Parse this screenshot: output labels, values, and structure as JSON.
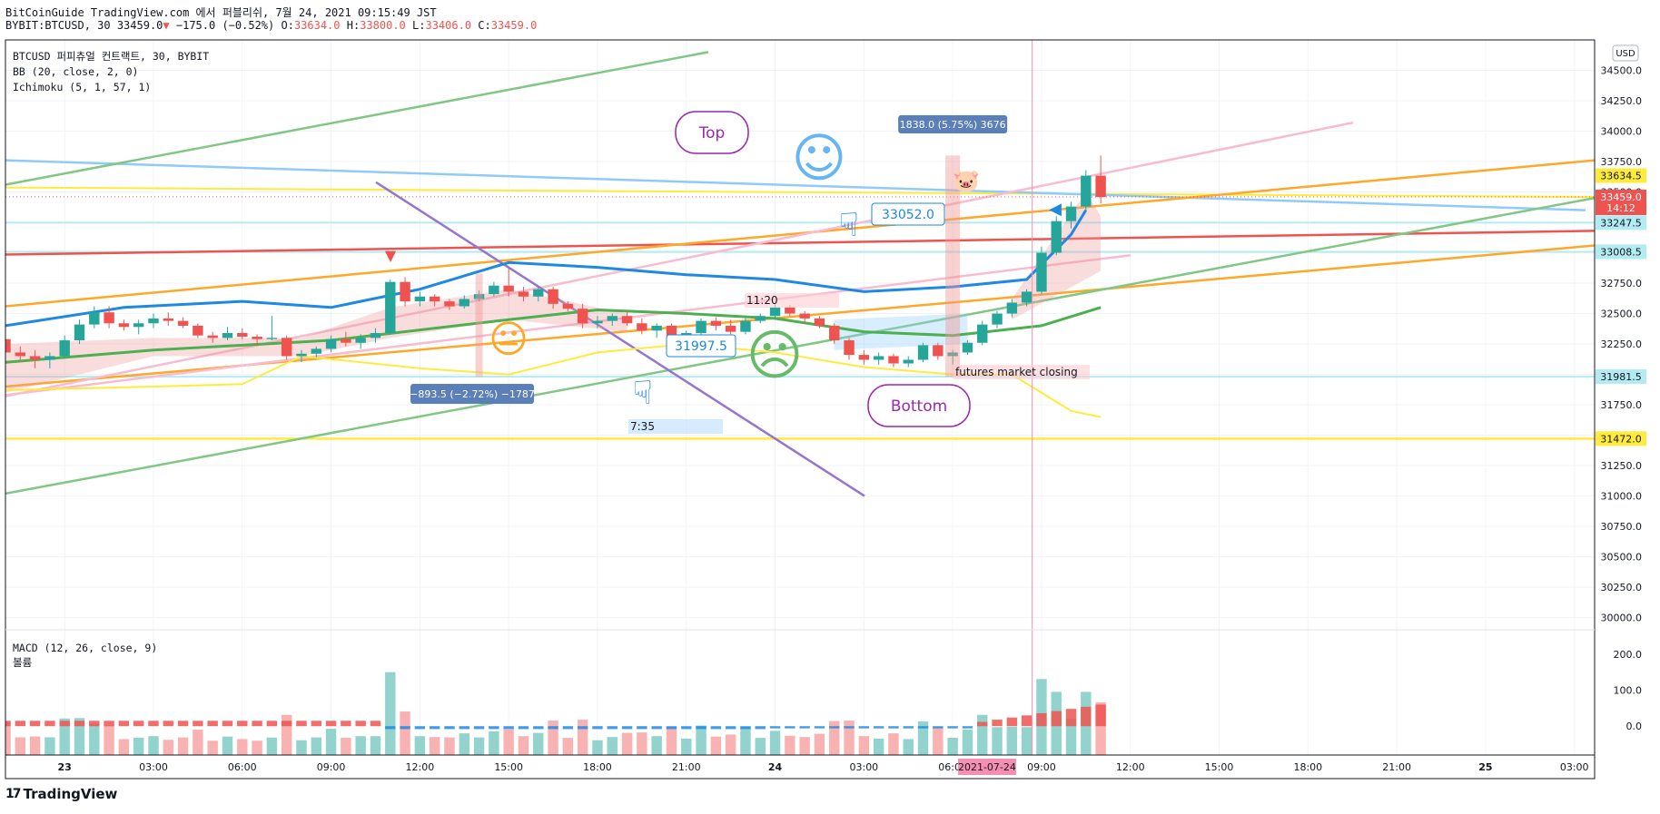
{
  "header": {
    "line1": "BitCoinGuide TradingView.com 에서 퍼블리쉬, 7월 24, 2021 09:15:49 JST",
    "symbol": "BYBIT:BTCUSD, 30",
    "price": "33459.0",
    "change": "−175.0 (−0.52%)",
    "ohlc": {
      "o_label": "O:",
      "o": "33634.0",
      "h_label": "H:",
      "h": "33800.0",
      "l_label": "L:",
      "l": "33406.0",
      "c_label": "C:",
      "c": "33459.0"
    }
  },
  "legend": {
    "title": "BTCUSD 퍼피츄얼 컨트랙트, 30, BYBIT",
    "bb": "BB (20, close, 2, 0)",
    "ichimoku": "Ichimoku (5, 1, 57, 1)",
    "macd": "MACD (12, 26, close, 9)",
    "volume": "볼륨"
  },
  "brand": "TradingView",
  "colors": {
    "up": "#26a69a",
    "down": "#ef5350",
    "bb": "#1e88e5",
    "kijun": "#4caf50",
    "yellow": "#ffeb3b",
    "cyan": "#b2ebf2",
    "pink": "#f8bbd0",
    "orange": "#ffa726",
    "blueTrend": "#90caf9",
    "purple": "#9575cd"
  },
  "chart_data": {
    "type": "candlestick",
    "currency": "USD",
    "ylim": [
      29900,
      34750
    ],
    "yticks": [
      30000,
      30250,
      30500,
      30750,
      31000,
      31250,
      31500,
      31750,
      32000,
      32250,
      32500,
      32750,
      33000,
      33250,
      33500,
      33750,
      34000,
      34250,
      34500
    ],
    "x_labels": [
      "23",
      "03:00",
      "06:00",
      "09:00",
      "12:00",
      "15:00",
      "18:00",
      "21:00",
      "24",
      "03:00",
      "06:00",
      "09:00",
      "12:00",
      "15:00",
      "18:00",
      "21:00",
      "25",
      "03:00"
    ],
    "x_label_highlight": "2021-07-24",
    "time_range": [
      "2021-07-22 22:00",
      "2021-07-25 03:30"
    ],
    "interval_minutes": 30,
    "price_labels": [
      {
        "value": "33634.5",
        "price": 33634.5,
        "color": "#ffeb3b",
        "text_color": "#131722"
      },
      {
        "value": "33459.0",
        "price": 33459.0,
        "color": "#ef5350",
        "text_color": "#ffffff",
        "sub": "14:12"
      },
      {
        "value": "33247.5",
        "price": 33247.5,
        "color": "#b2ebf2",
        "text_color": "#131722"
      },
      {
        "value": "33008.5",
        "price": 33008.5,
        "color": "#b2ebf2",
        "text_color": "#131722"
      },
      {
        "value": "31981.5",
        "price": 31981.5,
        "color": "#b2ebf2",
        "text_color": "#131722"
      },
      {
        "value": "31472.0",
        "price": 31472.0,
        "color": "#ffeb3b",
        "text_color": "#131722"
      }
    ],
    "candles": [
      {
        "t": "2021-07-22 22:00",
        "o": 32290,
        "h": 32340,
        "l": 32150,
        "c": 32180
      },
      {
        "t": "2021-07-22 22:30",
        "o": 32180,
        "h": 32230,
        "l": 32100,
        "c": 32150
      },
      {
        "t": "2021-07-22 23:00",
        "o": 32150,
        "h": 32200,
        "l": 32050,
        "c": 32120
      },
      {
        "t": "2021-07-22 23:30",
        "o": 32120,
        "h": 32180,
        "l": 32050,
        "c": 32150
      },
      {
        "t": "2021-07-23 00:00",
        "o": 32150,
        "h": 32320,
        "l": 32130,
        "c": 32280
      },
      {
        "t": "2021-07-23 00:30",
        "o": 32280,
        "h": 32450,
        "l": 32250,
        "c": 32410
      },
      {
        "t": "2021-07-23 01:00",
        "o": 32410,
        "h": 32560,
        "l": 32380,
        "c": 32510
      },
      {
        "t": "2021-07-23 01:30",
        "o": 32510,
        "h": 32560,
        "l": 32380,
        "c": 32420
      },
      {
        "t": "2021-07-23 02:00",
        "o": 32420,
        "h": 32450,
        "l": 32360,
        "c": 32390
      },
      {
        "t": "2021-07-23 02:30",
        "o": 32390,
        "h": 32450,
        "l": 32330,
        "c": 32420
      },
      {
        "t": "2021-07-23 03:00",
        "o": 32420,
        "h": 32500,
        "l": 32380,
        "c": 32460
      },
      {
        "t": "2021-07-23 03:30",
        "o": 32460,
        "h": 32510,
        "l": 32400,
        "c": 32440
      },
      {
        "t": "2021-07-23 04:00",
        "o": 32440,
        "h": 32470,
        "l": 32380,
        "c": 32400
      },
      {
        "t": "2021-07-23 04:30",
        "o": 32400,
        "h": 32420,
        "l": 32300,
        "c": 32320
      },
      {
        "t": "2021-07-23 05:00",
        "o": 32320,
        "h": 32350,
        "l": 32260,
        "c": 32300
      },
      {
        "t": "2021-07-23 05:30",
        "o": 32300,
        "h": 32390,
        "l": 32280,
        "c": 32340
      },
      {
        "t": "2021-07-23 06:00",
        "o": 32340,
        "h": 32380,
        "l": 32290,
        "c": 32310
      },
      {
        "t": "2021-07-23 06:30",
        "o": 32310,
        "h": 32330,
        "l": 32240,
        "c": 32290
      },
      {
        "t": "2021-07-23 07:00",
        "o": 32290,
        "h": 32480,
        "l": 32280,
        "c": 32300
      },
      {
        "t": "2021-07-23 07:30",
        "o": 32300,
        "h": 32320,
        "l": 32120,
        "c": 32150
      },
      {
        "t": "2021-07-23 08:00",
        "o": 32150,
        "h": 32200,
        "l": 32100,
        "c": 32170
      },
      {
        "t": "2021-07-23 08:30",
        "o": 32170,
        "h": 32230,
        "l": 32140,
        "c": 32210
      },
      {
        "t": "2021-07-23 09:00",
        "o": 32210,
        "h": 32320,
        "l": 32180,
        "c": 32290
      },
      {
        "t": "2021-07-23 09:30",
        "o": 32290,
        "h": 32350,
        "l": 32230,
        "c": 32260
      },
      {
        "t": "2021-07-23 10:00",
        "o": 32260,
        "h": 32330,
        "l": 32210,
        "c": 32300
      },
      {
        "t": "2021-07-23 10:30",
        "o": 32300,
        "h": 32380,
        "l": 32260,
        "c": 32340
      },
      {
        "t": "2021-07-23 11:00",
        "o": 32340,
        "h": 32780,
        "l": 32330,
        "c": 32760
      },
      {
        "t": "2021-07-23 11:30",
        "o": 32760,
        "h": 32800,
        "l": 32560,
        "c": 32600
      },
      {
        "t": "2021-07-23 12:00",
        "o": 32600,
        "h": 32680,
        "l": 32560,
        "c": 32640
      },
      {
        "t": "2021-07-23 12:30",
        "o": 32640,
        "h": 32660,
        "l": 32560,
        "c": 32600
      },
      {
        "t": "2021-07-23 13:00",
        "o": 32600,
        "h": 32620,
        "l": 32530,
        "c": 32560
      },
      {
        "t": "2021-07-23 13:30",
        "o": 32560,
        "h": 32650,
        "l": 32540,
        "c": 32620
      },
      {
        "t": "2021-07-23 14:00",
        "o": 32620,
        "h": 32690,
        "l": 32600,
        "c": 32660
      },
      {
        "t": "2021-07-23 14:30",
        "o": 32660,
        "h": 32760,
        "l": 32640,
        "c": 32730
      },
      {
        "t": "2021-07-23 15:00",
        "o": 32730,
        "h": 32880,
        "l": 32640,
        "c": 32680
      },
      {
        "t": "2021-07-23 15:30",
        "o": 32680,
        "h": 32720,
        "l": 32600,
        "c": 32640
      },
      {
        "t": "2021-07-23 16:00",
        "o": 32640,
        "h": 32720,
        "l": 32600,
        "c": 32700
      },
      {
        "t": "2021-07-23 16:30",
        "o": 32700,
        "h": 32720,
        "l": 32540,
        "c": 32580
      },
      {
        "t": "2021-07-23 17:00",
        "o": 32580,
        "h": 32600,
        "l": 32520,
        "c": 32540
      },
      {
        "t": "2021-07-23 17:30",
        "o": 32540,
        "h": 32580,
        "l": 32380,
        "c": 32420
      },
      {
        "t": "2021-07-23 18:00",
        "o": 32420,
        "h": 32480,
        "l": 32380,
        "c": 32440
      },
      {
        "t": "2021-07-23 18:30",
        "o": 32440,
        "h": 32500,
        "l": 32400,
        "c": 32480
      },
      {
        "t": "2021-07-23 19:00",
        "o": 32480,
        "h": 32520,
        "l": 32400,
        "c": 32420
      },
      {
        "t": "2021-07-23 19:30",
        "o": 32420,
        "h": 32460,
        "l": 32330,
        "c": 32360
      },
      {
        "t": "2021-07-23 20:00",
        "o": 32360,
        "h": 32420,
        "l": 32300,
        "c": 32400
      },
      {
        "t": "2021-07-23 20:30",
        "o": 32400,
        "h": 32420,
        "l": 32280,
        "c": 32310
      },
      {
        "t": "2021-07-23 21:00",
        "o": 32310,
        "h": 32360,
        "l": 32260,
        "c": 32340
      },
      {
        "t": "2021-07-23 21:30",
        "o": 32340,
        "h": 32460,
        "l": 32320,
        "c": 32440
      },
      {
        "t": "2021-07-23 22:00",
        "o": 32440,
        "h": 32470,
        "l": 32360,
        "c": 32400
      },
      {
        "t": "2021-07-23 22:30",
        "o": 32400,
        "h": 32450,
        "l": 32330,
        "c": 32350
      },
      {
        "t": "2021-07-23 23:00",
        "o": 32350,
        "h": 32470,
        "l": 32330,
        "c": 32440
      },
      {
        "t": "2021-07-23 23:30",
        "o": 32440,
        "h": 32500,
        "l": 32420,
        "c": 32480
      },
      {
        "t": "2021-07-24 00:00",
        "o": 32480,
        "h": 32580,
        "l": 32450,
        "c": 32550
      },
      {
        "t": "2021-07-24 00:30",
        "o": 32550,
        "h": 32570,
        "l": 32480,
        "c": 32500
      },
      {
        "t": "2021-07-24 01:00",
        "o": 32500,
        "h": 32520,
        "l": 32420,
        "c": 32460
      },
      {
        "t": "2021-07-24 01:30",
        "o": 32460,
        "h": 32480,
        "l": 32380,
        "c": 32400
      },
      {
        "t": "2021-07-24 02:00",
        "o": 32400,
        "h": 32420,
        "l": 32250,
        "c": 32280
      },
      {
        "t": "2021-07-24 02:30",
        "o": 32280,
        "h": 32300,
        "l": 32120,
        "c": 32160
      },
      {
        "t": "2021-07-24 03:00",
        "o": 32160,
        "h": 32200,
        "l": 32080,
        "c": 32120
      },
      {
        "t": "2021-07-24 03:30",
        "o": 32120,
        "h": 32180,
        "l": 32080,
        "c": 32150
      },
      {
        "t": "2021-07-24 04:00",
        "o": 32150,
        "h": 32170,
        "l": 32060,
        "c": 32090
      },
      {
        "t": "2021-07-24 04:30",
        "o": 32090,
        "h": 32150,
        "l": 32060,
        "c": 32120
      },
      {
        "t": "2021-07-24 05:00",
        "o": 32120,
        "h": 32260,
        "l": 32100,
        "c": 32240
      },
      {
        "t": "2021-07-24 05:30",
        "o": 32240,
        "h": 32260,
        "l": 32120,
        "c": 32150
      },
      {
        "t": "2021-07-24 06:00",
        "o": 32150,
        "h": 32200,
        "l": 32080,
        "c": 32180
      },
      {
        "t": "2021-07-24 06:30",
        "o": 32180,
        "h": 32280,
        "l": 32160,
        "c": 32260
      },
      {
        "t": "2021-07-24 07:00",
        "o": 32260,
        "h": 32440,
        "l": 32240,
        "c": 32410
      },
      {
        "t": "2021-07-24 07:30",
        "o": 32410,
        "h": 32520,
        "l": 32380,
        "c": 32500
      },
      {
        "t": "2021-07-24 08:00",
        "o": 32500,
        "h": 32620,
        "l": 32470,
        "c": 32590
      },
      {
        "t": "2021-07-24 08:30",
        "o": 32590,
        "h": 32700,
        "l": 32560,
        "c": 32680
      },
      {
        "t": "2021-07-24 09:00",
        "o": 32680,
        "h": 33050,
        "l": 32660,
        "c": 33000
      },
      {
        "t": "2021-07-24 09:30",
        "o": 33000,
        "h": 33300,
        "l": 32980,
        "c": 33260
      },
      {
        "t": "2021-07-24 10:00",
        "o": 33260,
        "h": 33420,
        "l": 33200,
        "c": 33380
      },
      {
        "t": "2021-07-24 10:30",
        "o": 33380,
        "h": 33680,
        "l": 33340,
        "c": 33634
      },
      {
        "t": "2021-07-24 11:00",
        "o": 33634,
        "h": 33800,
        "l": 33406,
        "c": 33459
      }
    ],
    "series": [
      {
        "name": "BB upper",
        "values_note": "",
        "values": []
      }
    ],
    "annotations": [
      {
        "type": "callout",
        "text": "Top"
      },
      {
        "type": "callout",
        "text": "Bottom"
      },
      {
        "type": "range",
        "text": "1838.0 (5.75%) 3676"
      },
      {
        "type": "range",
        "text": "−893.5 (−2.72%) −1787"
      },
      {
        "type": "price_note",
        "text": "33052.0"
      },
      {
        "type": "price_note",
        "text": "31997.5"
      },
      {
        "type": "time_note",
        "text": "7:35"
      },
      {
        "type": "time_note",
        "text": "11:20"
      },
      {
        "type": "note",
        "text": "futures market closing"
      }
    ],
    "macd": {
      "yticks": [
        "200.0",
        "100.0",
        "0.0"
      ],
      "ylim": [
        -80,
        260
      ]
    }
  }
}
